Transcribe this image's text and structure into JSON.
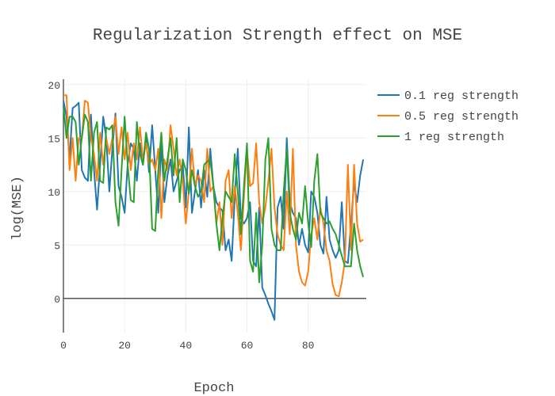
{
  "chart_data": {
    "type": "line",
    "title": "Regularization Strength effect on MSE",
    "xlabel": "Epoch",
    "ylabel": "log(MSE)",
    "xlim": [
      0,
      99
    ],
    "ylim": [
      -3.2,
      20.5
    ],
    "x_ticks": [
      0,
      20,
      40,
      60,
      80
    ],
    "y_ticks": [
      0,
      5,
      10,
      15,
      20
    ],
    "grid": true,
    "legend_position": "top-right",
    "series": [
      {
        "name": "0.1 reg strength",
        "color": "#1f77b4",
        "values": [
          18.5,
          17.0,
          13.0,
          17.8,
          18.0,
          18.3,
          12.0,
          11.3,
          11.0,
          17.2,
          12.0,
          8.3,
          12.5,
          17.0,
          15.0,
          10.0,
          14.0,
          17.3,
          10.5,
          9.5,
          8.0,
          12.5,
          14.5,
          14.0,
          11.0,
          14.5,
          12.5,
          15.0,
          11.8,
          16.2,
          12.0,
          8.0,
          14.5,
          9.0,
          11.5,
          13.0,
          10.0,
          11.0,
          12.0,
          12.5,
          8.5,
          16.0,
          8.0,
          10.0,
          12.0,
          8.5,
          12.0,
          9.5,
          14.0,
          10.5,
          9.0,
          8.5,
          8.2,
          4.5,
          5.5,
          3.5,
          9.5,
          14.0,
          7.5,
          7.0,
          7.5,
          9.0,
          3.5,
          3.0,
          8.5,
          1.0,
          0.3,
          -0.5,
          -1.2,
          -2.0,
          8.5,
          9.5,
          6.5,
          15.0,
          9.0,
          8.0,
          7.5,
          5.0,
          6.5,
          5.0,
          4.3,
          10.0,
          9.5,
          8.0,
          5.0,
          4.2,
          9.5,
          5.5,
          4.5,
          3.8,
          4.5,
          9.0,
          3.5,
          3.3,
          7.0,
          10.8,
          9.0,
          11.5,
          13.0
        ]
      },
      {
        "name": "0.5 reg strength",
        "color": "#ff7f0e",
        "values": [
          19.0,
          19.0,
          12.0,
          15.0,
          11.0,
          15.0,
          15.0,
          18.5,
          18.3,
          15.0,
          13.5,
          11.0,
          15.5,
          12.5,
          15.0,
          13.5,
          15.0,
          17.0,
          13.5,
          16.0,
          13.0,
          15.5,
          12.0,
          14.5,
          13.0,
          16.0,
          13.0,
          14.5,
          12.5,
          13.0,
          12.0,
          14.0,
          7.5,
          13.0,
          12.0,
          16.2,
          14.0,
          11.5,
          13.0,
          11.0,
          7.0,
          10.0,
          14.0,
          10.5,
          11.5,
          11.0,
          9.0,
          14.0,
          10.0,
          10.5,
          7.0,
          9.0,
          5.0,
          11.0,
          12.0,
          7.5,
          10.5,
          8.0,
          4.5,
          9.5,
          14.0,
          10.5,
          10.8,
          14.5,
          9.0,
          7.0,
          8.5,
          11.0,
          14.0,
          8.5,
          6.0,
          5.0,
          4.5,
          10.0,
          6.0,
          14.0,
          5.0,
          2.5,
          1.5,
          1.2,
          2.5,
          6.0,
          7.5,
          5.5,
          8.5,
          7.0,
          4.5,
          3.5,
          1.3,
          0.3,
          0.2,
          1.5,
          3.5,
          12.5,
          4.5,
          12.5,
          7.0,
          5.3,
          5.5
        ]
      },
      {
        "name": "1 reg strength",
        "color": "#2ca02c",
        "values": [
          18.0,
          15.0,
          17.0,
          17.0,
          16.5,
          12.5,
          15.0,
          17.2,
          16.5,
          11.0,
          15.5,
          16.5,
          11.0,
          10.8,
          16.0,
          15.8,
          16.2,
          9.0,
          6.8,
          12.0,
          17.0,
          12.5,
          9.2,
          9.0,
          16.5,
          13.5,
          12.5,
          15.5,
          14.0,
          6.5,
          6.3,
          12.0,
          15.5,
          11.0,
          13.0,
          15.0,
          11.5,
          15.0,
          9.0,
          13.0,
          12.0,
          9.8,
          12.0,
          10.5,
          9.5,
          10.0,
          12.5,
          12.8,
          13.0,
          10.5,
          7.0,
          4.5,
          7.5,
          10.0,
          9.5,
          9.0,
          13.5,
          10.0,
          6.0,
          10.5,
          14.5,
          3.5,
          2.5,
          8.0,
          1.5,
          5.0,
          13.0,
          15.0,
          6.5,
          5.0,
          4.5,
          4.5,
          10.0,
          14.0,
          8.0,
          6.5,
          5.5,
          8.0,
          7.0,
          10.5,
          7.0,
          4.8,
          11.0,
          13.5,
          8.0,
          7.5,
          7.0,
          7.2,
          6.5,
          6.0,
          5.0,
          4.0,
          3.0,
          3.0,
          3.0,
          7.0,
          4.5,
          3.0,
          2.0
        ]
      }
    ]
  }
}
